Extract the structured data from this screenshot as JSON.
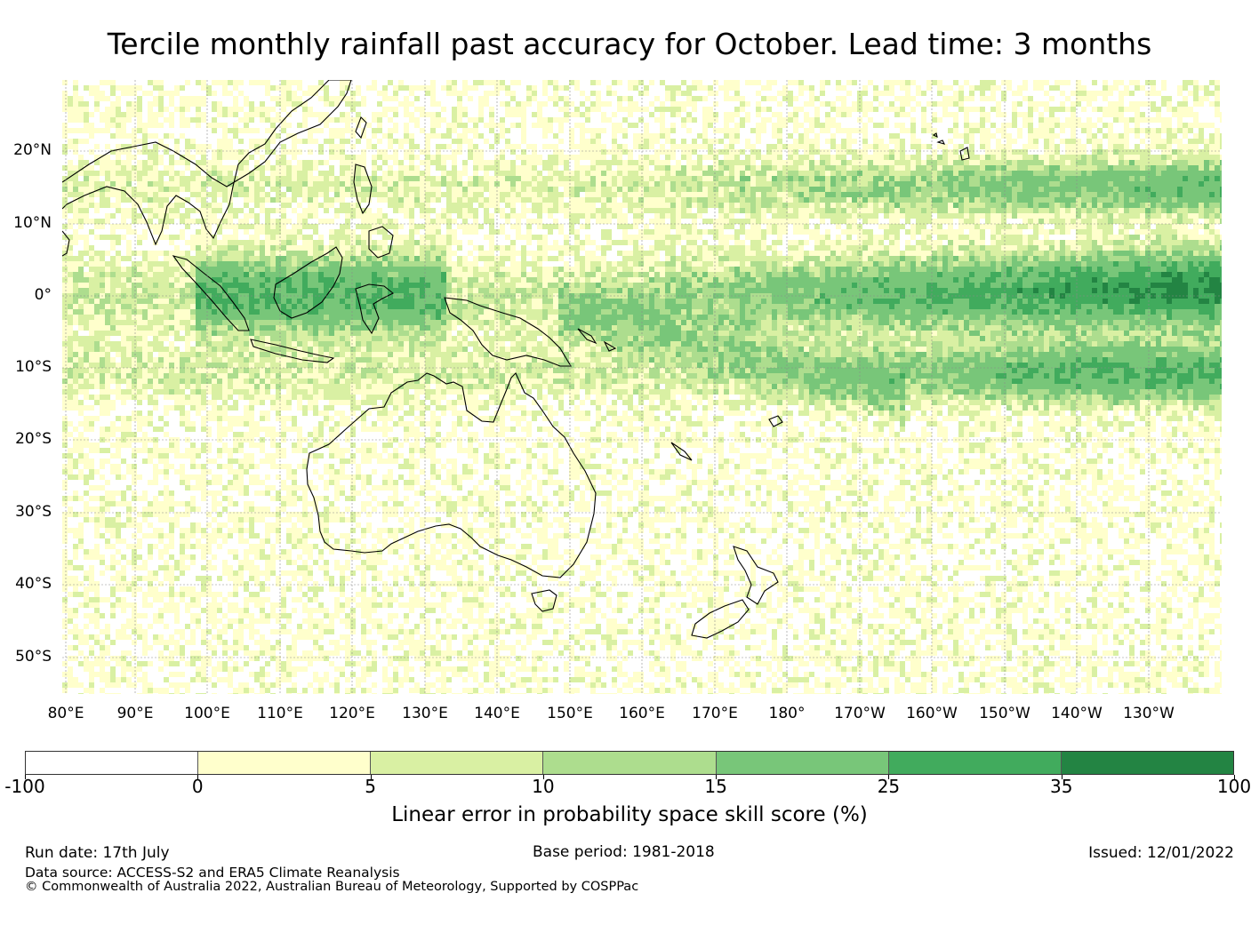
{
  "title": "Tercile monthly rainfall past accuracy for October. Lead time: 3 months",
  "map": {
    "lat_labels": [
      "20°N",
      "10°N",
      "0°",
      "10°S",
      "20°S",
      "30°S",
      "40°S",
      "50°S"
    ],
    "lon_labels": [
      "80°E",
      "90°E",
      "100°E",
      "110°E",
      "120°E",
      "130°E",
      "140°E",
      "150°E",
      "160°E",
      "170°E",
      "180°",
      "170°W",
      "160°W",
      "150°W",
      "140°W",
      "130°W"
    ],
    "background_color": "#ffffcc",
    "gridlines": true,
    "regions": [
      "Australia",
      "New Zealand",
      "Indonesia",
      "Papua New Guinea",
      "Philippines",
      "Hawaii",
      "Pacific Ocean"
    ]
  },
  "colorbar": {
    "ticks": [
      "-100",
      "0",
      "5",
      "10",
      "15",
      "25",
      "35",
      "100"
    ],
    "colors": [
      "#ffffff",
      "#ffffcc",
      "#d9f0a3",
      "#addd8e",
      "#78c679",
      "#41ab5d",
      "#238443"
    ],
    "label": "Linear error in probability space skill score (%)"
  },
  "footer": {
    "run_date": "Run date: 17th July",
    "base_period": "Base period: 1981-2018",
    "issued": "Issued: 12/01/2022",
    "data_source": "Data source: ACCESS-S2 and ERA5 Climate Reanalysis",
    "copyright": "© Commonwealth of Australia 2022, Australian Bureau of Meteorology, Supported by COSPPac"
  }
}
